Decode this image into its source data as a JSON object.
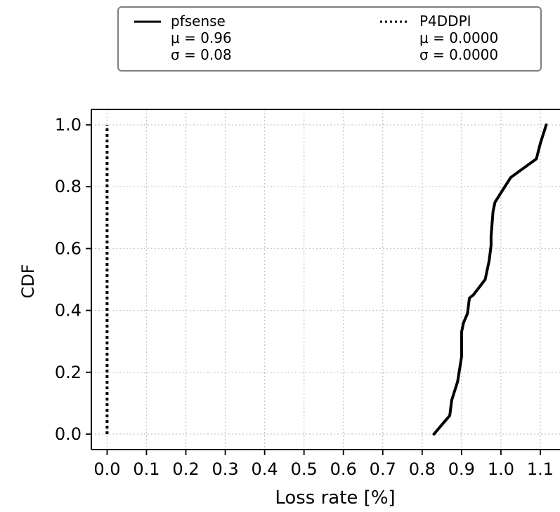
{
  "chart_data": {
    "type": "line",
    "xlabel": "Loss rate [%]",
    "ylabel": "CDF",
    "xlim": [
      -0.04,
      1.15
    ],
    "ylim": [
      -0.05,
      1.05
    ],
    "xticks": [
      0.0,
      0.1,
      0.2,
      0.3,
      0.4,
      0.5,
      0.6,
      0.7,
      0.8,
      0.9,
      1.0,
      1.1
    ],
    "xtick_labels": [
      "0.0",
      "0.1",
      "0.2",
      "0.3",
      "0.4",
      "0.5",
      "0.6",
      "0.7",
      "0.8",
      "0.9",
      "1.0",
      "1.1"
    ],
    "yticks": [
      0.0,
      0.2,
      0.4,
      0.6,
      0.8,
      1.0
    ],
    "ytick_labels": [
      "0.0",
      "0.2",
      "0.4",
      "0.6",
      "0.8",
      "1.0"
    ],
    "grid": true,
    "legend_position": "top-center",
    "series": [
      {
        "name": "pfsense",
        "linestyle": "solid",
        "color": "#000000",
        "legend_lines": [
          "μ = 0.96",
          "σ = 0.08"
        ],
        "x": [
          0.83,
          0.85,
          0.87,
          0.875,
          0.89,
          0.9,
          0.9,
          0.905,
          0.915,
          0.92,
          0.93,
          0.96,
          0.97,
          0.975,
          0.975,
          0.98,
          0.985,
          1.0,
          1.025,
          1.09,
          1.1,
          1.115
        ],
        "y": [
          0.0,
          0.03,
          0.06,
          0.11,
          0.17,
          0.25,
          0.33,
          0.36,
          0.39,
          0.44,
          0.45,
          0.5,
          0.56,
          0.61,
          0.64,
          0.72,
          0.75,
          0.78,
          0.83,
          0.89,
          0.94,
          1.0
        ]
      },
      {
        "name": "P4DDPI",
        "linestyle": "dotted",
        "color": "#000000",
        "legend_lines": [
          "μ = 0.0000",
          "σ = 0.0000"
        ],
        "x": [
          0.0,
          0.0
        ],
        "y": [
          0.0,
          1.0
        ]
      }
    ]
  }
}
